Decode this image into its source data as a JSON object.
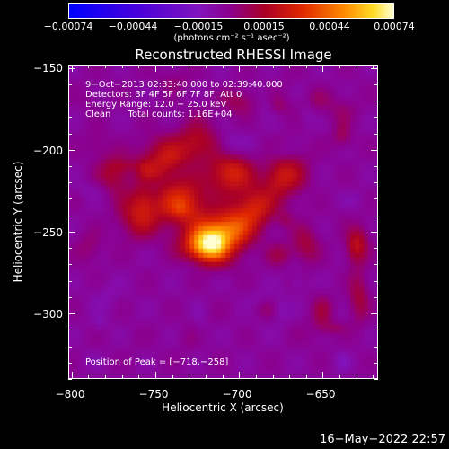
{
  "chart_data": {
    "type": "heatmap",
    "title": "Reconstructed RHESSI Image",
    "xlabel": "Heliocentric X (arcsec)",
    "ylabel": "Heliocentric Y (arcsec)",
    "xlim": [
      -802,
      -617
    ],
    "ylim": [
      -340,
      -148
    ],
    "x_ticks": [
      -800,
      -750,
      -700,
      -650
    ],
    "x_tick_labels": [
      "−800",
      "−750",
      "−700",
      "−650"
    ],
    "y_ticks": [
      -150,
      -200,
      -250,
      -300
    ],
    "y_tick_labels": [
      "−150",
      "−200",
      "−250",
      "−300"
    ],
    "colorbar": {
      "min": -0.00074,
      "max": 0.00074,
      "tick_labels": [
        "−0.00074",
        "−0.00044",
        "−0.00015",
        "0.00015",
        "0.00044",
        "0.00074"
      ],
      "units": "(photons cm⁻² s⁻¹ asec⁻²)"
    },
    "info": [
      "9−Oct−2013 02:33:40.000 to 02:39:40.000",
      "Detectors: 3F 4F 5F 6F 7F 8F, Att 0",
      "Energy Range: 12.0 − 25.0 keV",
      "Clean      Total counts: 1.16E+04"
    ],
    "peak": {
      "x": -718,
      "y": -258,
      "label": "Position of Peak = [−718,−258]"
    },
    "grid": false
  },
  "footer": {
    "timestamp": "16−May−2022 22:57"
  }
}
